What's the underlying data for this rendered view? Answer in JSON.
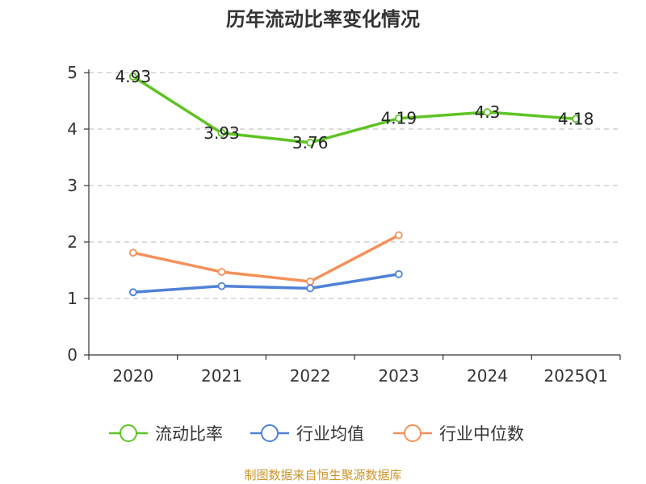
{
  "chart_data": {
    "type": "line",
    "title": "历年流动比率变化情况",
    "categories": [
      "2020",
      "2021",
      "2022",
      "2023",
      "2024",
      "2025Q1"
    ],
    "y_ticks": [
      "0",
      "1",
      "2",
      "3",
      "4",
      "5"
    ],
    "ylim": [
      0,
      5
    ],
    "grid": "horizontal dashed",
    "legend_position": "bottom",
    "series": [
      {
        "name": "流动比率",
        "color": "#5ec424",
        "values": [
          4.93,
          3.93,
          3.76,
          4.19,
          4.3,
          4.18
        ],
        "labels": [
          "4.93",
          "3.93",
          "3.76",
          "4.19",
          "4.3",
          "4.18"
        ]
      },
      {
        "name": "行业均值",
        "color": "#4f81d8",
        "values": [
          1.11,
          1.22,
          1.18,
          1.43,
          null,
          null
        ]
      },
      {
        "name": "行业中位数",
        "color": "#f5905a",
        "values": [
          1.81,
          1.47,
          1.3,
          2.12,
          null,
          null
        ]
      }
    ]
  },
  "source_note": "制图数据来自恒生聚源数据库"
}
